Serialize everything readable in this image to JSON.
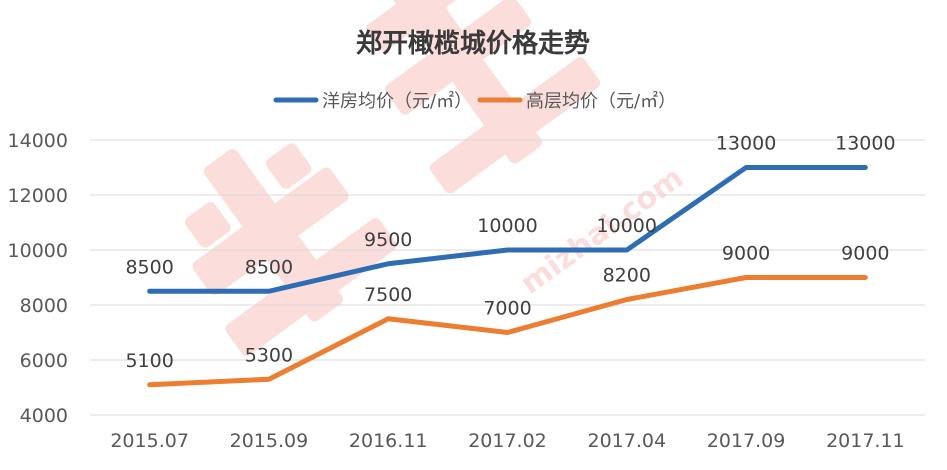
{
  "chart_data": {
    "type": "line",
    "title": "郑开橄榄城价格走势",
    "categories": [
      "2015.07",
      "2015.09",
      "2016.11",
      "2017.02",
      "2017.04",
      "2017.09",
      "2017.11"
    ],
    "series": [
      {
        "name": "洋房均价（元/㎡）",
        "values": [
          8500,
          8500,
          9500,
          10000,
          10000,
          13000,
          13000
        ],
        "color": "#2E6DB4"
      },
      {
        "name": "高层均价（元/㎡）",
        "values": [
          5100,
          5300,
          7500,
          7000,
          8200,
          9000,
          9000
        ],
        "color": "#ED7D31"
      }
    ],
    "y_ticks": [
      "4000",
      "6000",
      "8000",
      "10000",
      "12000",
      "14000"
    ],
    "ylim": [
      4000,
      14000
    ],
    "grid": true,
    "legend_position": "top-center",
    "watermark": "米宅 mizhai.com"
  }
}
